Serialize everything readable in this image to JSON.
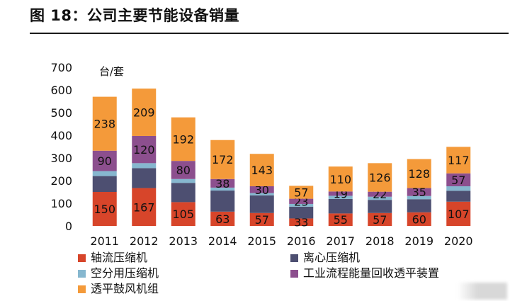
{
  "title": "图 18：公司主要节能设备销量",
  "chart_data": {
    "type": "bar",
    "stacked": true,
    "unit_label": "台/套",
    "categories": [
      "2011",
      "2012",
      "2013",
      "2014",
      "2015",
      "2016",
      "2017",
      "2018",
      "2019",
      "2020"
    ],
    "ylim": [
      0,
      700
    ],
    "yticks": [
      "0",
      "100",
      "200",
      "300",
      "400",
      "500",
      "600",
      "700"
    ],
    "series": [
      {
        "name": "轴流压缩机",
        "color": "#d7452a",
        "values": [
          150,
          167,
          105,
          63,
          57,
          33,
          55,
          57,
          60,
          107
        ],
        "labels": [
          "150",
          "167",
          "105",
          "63",
          "57",
          "33",
          "55",
          "57",
          "60",
          "107"
        ]
      },
      {
        "name": "离心压缩机",
        "color": "#4d4f71",
        "values": [
          70,
          88,
          85,
          93,
          78,
          52,
          64,
          58,
          58,
          48
        ],
        "labels": null
      },
      {
        "name": "空分用压缩机",
        "color": "#86b7cf",
        "values": [
          22,
          22,
          17,
          13,
          10,
          12,
          14,
          14,
          14,
          20
        ],
        "labels": null
      },
      {
        "name": "工业流程能量回收透平装置",
        "color": "#8c4f8e",
        "values": [
          90,
          120,
          80,
          38,
          30,
          23,
          19,
          22,
          35,
          57
        ],
        "labels": [
          "90",
          "120",
          "80",
          "38",
          "30",
          "23",
          "19",
          "22",
          "35",
          "57"
        ]
      },
      {
        "name": "透平鼓风机组",
        "color": "#f49a3a",
        "values": [
          238,
          209,
          192,
          172,
          143,
          57,
          110,
          126,
          128,
          117
        ],
        "labels": [
          "238",
          "209",
          "192",
          "172",
          "143",
          "57",
          "110",
          "126",
          "128",
          "117"
        ]
      }
    ]
  }
}
